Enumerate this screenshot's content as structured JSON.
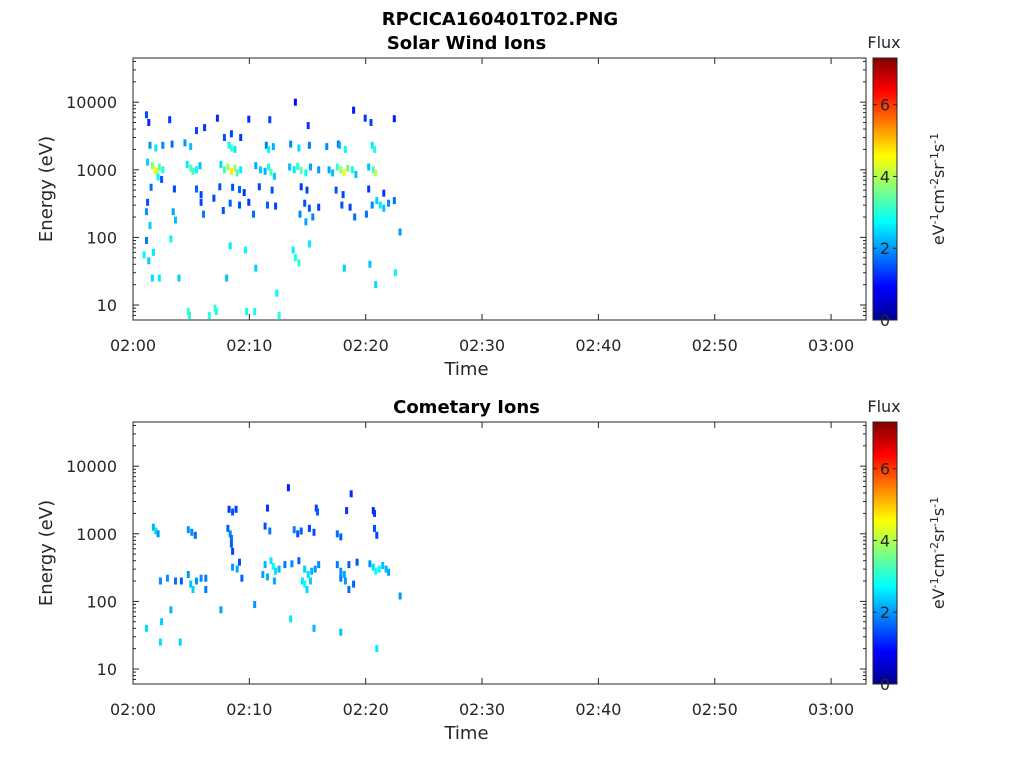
{
  "figure_title": "RPCICA160401T02.PNG",
  "colors": {
    "axis": "#262626",
    "colormap": [
      "#00008f",
      "#0000ff",
      "#0080ff",
      "#00ffff",
      "#80ff80",
      "#ffff00",
      "#ff8000",
      "#ff0000",
      "#800000"
    ]
  },
  "chart_data": [
    {
      "type": "heatmap",
      "title": "Solar Wind Ions",
      "xlabel": "Time",
      "ylabel": "Energy (eV)",
      "yscale": "log",
      "xlim": [
        "02:00",
        "03:03"
      ],
      "ylim": [
        6,
        45000
      ],
      "x_ticks": [
        "02:00",
        "02:10",
        "02:20",
        "02:30",
        "02:40",
        "02:50",
        "03:00"
      ],
      "y_ticks": [
        10,
        100,
        1000,
        10000
      ],
      "y_tick_labels": [
        "10",
        "100",
        "1000",
        "10000"
      ],
      "colorbar": {
        "title": "Flux",
        "label_base": "eV-1cm-2sr-1s-1",
        "range": [
          0,
          7.3
        ],
        "ticks": [
          0,
          2,
          4,
          6
        ],
        "tick_labels": [
          "0",
          "2",
          "4",
          "6"
        ]
      },
      "points": [
        [
          1.2,
          6500,
          1.5
        ],
        [
          1.4,
          5000,
          1.2
        ],
        [
          3.2,
          5500,
          1.3
        ],
        [
          4.5,
          2500,
          2.0
        ],
        [
          5.5,
          3800,
          1.4
        ],
        [
          6.2,
          4200,
          1.3
        ],
        [
          7.3,
          5800,
          1.2
        ],
        [
          7.9,
          3000,
          1.5
        ],
        [
          8.5,
          3400,
          1.4
        ],
        [
          9.3,
          3000,
          1.3
        ],
        [
          10.0,
          5600,
          1.2
        ],
        [
          11.8,
          5500,
          1.4
        ],
        [
          14.0,
          10000,
          1.0
        ],
        [
          15.1,
          4500,
          1.3
        ],
        [
          17.7,
          2400,
          1.6
        ],
        [
          19.0,
          7600,
          1.1
        ],
        [
          20.0,
          5800,
          1.3
        ],
        [
          20.5,
          5000,
          1.4
        ],
        [
          22.5,
          5700,
          1.1
        ],
        [
          1.5,
          2300,
          2.0
        ],
        [
          2.0,
          2100,
          2.6
        ],
        [
          2.6,
          2300,
          1.9
        ],
        [
          3.4,
          2400,
          1.7
        ],
        [
          5.0,
          2200,
          2.3
        ],
        [
          8.3,
          2300,
          2.8
        ],
        [
          8.5,
          2100,
          3.2
        ],
        [
          8.8,
          2000,
          2.6
        ],
        [
          11.5,
          2300,
          1.8
        ],
        [
          11.7,
          2000,
          2.7
        ],
        [
          12.1,
          2200,
          2.2
        ],
        [
          13.6,
          2400,
          1.9
        ],
        [
          14.3,
          2100,
          2.5
        ],
        [
          15.2,
          2300,
          1.8
        ],
        [
          16.7,
          2200,
          1.9
        ],
        [
          17.8,
          2300,
          2.2
        ],
        [
          18.3,
          2000,
          2.8
        ],
        [
          20.6,
          2300,
          2.6
        ],
        [
          20.8,
          2000,
          3.0
        ],
        [
          1.3,
          1300,
          2.4
        ],
        [
          1.7,
          1150,
          3.6
        ],
        [
          1.9,
          1000,
          4.5
        ],
        [
          2.1,
          950,
          4.2
        ],
        [
          2.3,
          1100,
          3.4
        ],
        [
          2.6,
          1000,
          2.9
        ],
        [
          2.2,
          780,
          2.7
        ],
        [
          4.7,
          1200,
          2.6
        ],
        [
          5.0,
          1050,
          3.3
        ],
        [
          5.2,
          950,
          3.2
        ],
        [
          5.5,
          1000,
          2.7
        ],
        [
          5.8,
          1150,
          2.3
        ],
        [
          7.6,
          1200,
          2.5
        ],
        [
          7.9,
          1000,
          3.2
        ],
        [
          8.2,
          1100,
          3.9
        ],
        [
          8.5,
          950,
          4.7
        ],
        [
          8.8,
          1050,
          3.7
        ],
        [
          9.0,
          900,
          3.3
        ],
        [
          9.3,
          1000,
          2.6
        ],
        [
          10.6,
          1150,
          2.1
        ],
        [
          11.0,
          1000,
          2.4
        ],
        [
          11.4,
          950,
          2.2
        ],
        [
          11.7,
          1100,
          2.9
        ],
        [
          11.9,
          920,
          3.3
        ],
        [
          12.2,
          800,
          2.4
        ],
        [
          13.5,
          1100,
          2.3
        ],
        [
          13.9,
          1000,
          2.6
        ],
        [
          14.2,
          1120,
          3.0
        ],
        [
          14.5,
          980,
          3.4
        ],
        [
          14.9,
          900,
          2.8
        ],
        [
          15.3,
          1100,
          2.1
        ],
        [
          16.0,
          1000,
          2.0
        ],
        [
          16.9,
          1000,
          2.1
        ],
        [
          17.2,
          900,
          2.3
        ],
        [
          17.6,
          1100,
          3.1
        ],
        [
          17.9,
          1000,
          3.8
        ],
        [
          18.2,
          920,
          4.4
        ],
        [
          18.5,
          1050,
          3.6
        ],
        [
          18.9,
          1000,
          2.9
        ],
        [
          19.2,
          850,
          2.3
        ],
        [
          20.3,
          1100,
          2.3
        ],
        [
          20.7,
          1000,
          3.2
        ],
        [
          20.9,
          900,
          4.1
        ],
        [
          1.6,
          550,
          1.7
        ],
        [
          2.5,
          720,
          1.5
        ],
        [
          3.6,
          520,
          1.4
        ],
        [
          5.5,
          520,
          1.6
        ],
        [
          5.9,
          430,
          1.4
        ],
        [
          7.5,
          560,
          1.5
        ],
        [
          8.6,
          550,
          1.5
        ],
        [
          9.2,
          510,
          1.6
        ],
        [
          9.6,
          460,
          1.3
        ],
        [
          10.9,
          560,
          1.4
        ],
        [
          12.0,
          500,
          1.5
        ],
        [
          14.5,
          560,
          1.3
        ],
        [
          15.0,
          500,
          1.4
        ],
        [
          17.5,
          500,
          1.5
        ],
        [
          18.1,
          430,
          1.4
        ],
        [
          20.3,
          520,
          1.3
        ],
        [
          21.6,
          450,
          1.3
        ],
        [
          1.3,
          330,
          1.5
        ],
        [
          5.9,
          330,
          1.4
        ],
        [
          7.0,
          380,
          1.4
        ],
        [
          8.4,
          320,
          1.6
        ],
        [
          9.2,
          300,
          1.5
        ],
        [
          10.0,
          330,
          1.3
        ],
        [
          11.6,
          300,
          1.6
        ],
        [
          12.3,
          290,
          1.4
        ],
        [
          14.8,
          320,
          1.5
        ],
        [
          15.2,
          270,
          1.6
        ],
        [
          16.0,
          280,
          1.4
        ],
        [
          18.0,
          300,
          1.5
        ],
        [
          18.7,
          280,
          1.4
        ],
        [
          20.6,
          300,
          1.9
        ],
        [
          21.0,
          350,
          2.4
        ],
        [
          21.3,
          300,
          2.6
        ],
        [
          21.6,
          270,
          2.3
        ],
        [
          22.0,
          320,
          1.9
        ],
        [
          22.5,
          350,
          1.7
        ],
        [
          1.2,
          240,
          2.0
        ],
        [
          1.5,
          150,
          2.4
        ],
        [
          3.5,
          240,
          2.1
        ],
        [
          3.7,
          180,
          2.3
        ],
        [
          6.1,
          220,
          1.8
        ],
        [
          7.8,
          250,
          1.5
        ],
        [
          10.4,
          220,
          1.7
        ],
        [
          14.4,
          220,
          1.9
        ],
        [
          14.9,
          170,
          2.1
        ],
        [
          15.5,
          200,
          1.9
        ],
        [
          19.1,
          200,
          1.7
        ],
        [
          20.1,
          220,
          1.7
        ],
        [
          23.0,
          120,
          2.0
        ],
        [
          1.2,
          90,
          1.8
        ],
        [
          1.8,
          60,
          2.6
        ],
        [
          3.3,
          95,
          2.7
        ],
        [
          8.4,
          75,
          2.6
        ],
        [
          9.7,
          65,
          2.7
        ],
        [
          13.8,
          65,
          2.6
        ],
        [
          14.0,
          50,
          2.9
        ],
        [
          14.3,
          42,
          3.0
        ],
        [
          15.2,
          80,
          2.6
        ],
        [
          1.0,
          55,
          2.7
        ],
        [
          1.4,
          45,
          2.4
        ],
        [
          1.7,
          25,
          2.5
        ],
        [
          2.3,
          25,
          2.6
        ],
        [
          4.0,
          25,
          2.4
        ],
        [
          8.1,
          25,
          2.3
        ],
        [
          10.6,
          35,
          2.4
        ],
        [
          18.2,
          35,
          2.4
        ],
        [
          20.4,
          40,
          2.3
        ],
        [
          20.9,
          20,
          2.5
        ],
        [
          22.6,
          30,
          2.7
        ],
        [
          4.8,
          8,
          3.1
        ],
        [
          4.9,
          7,
          3.0
        ],
        [
          6.6,
          7,
          3.0
        ],
        [
          7.1,
          9,
          3.1
        ],
        [
          7.2,
          8,
          3.0
        ],
        [
          9.8,
          8,
          2.9
        ],
        [
          10.5,
          8,
          2.9
        ],
        [
          12.4,
          15,
          2.7
        ],
        [
          12.6,
          7,
          3.0
        ]
      ]
    },
    {
      "type": "heatmap",
      "title": "Cometary Ions",
      "xlabel": "Time",
      "ylabel": "Energy (eV)",
      "yscale": "log",
      "xlim": [
        "02:00",
        "03:03"
      ],
      "ylim": [
        6,
        45000
      ],
      "x_ticks": [
        "02:00",
        "02:10",
        "02:20",
        "02:30",
        "02:40",
        "02:50",
        "03:00"
      ],
      "y_ticks": [
        10,
        100,
        1000,
        10000
      ],
      "y_tick_labels": [
        "10",
        "100",
        "1000",
        "10000"
      ],
      "colorbar": {
        "title": "Flux",
        "label_base": "eV-1cm-2sr-1s-1",
        "range": [
          0,
          7.3
        ],
        "ticks": [
          0,
          2,
          4,
          6
        ],
        "tick_labels": [
          "0",
          "2",
          "4",
          "6"
        ]
      },
      "points": [
        [
          13.4,
          4800,
          1.1
        ],
        [
          18.8,
          3900,
          1.2
        ],
        [
          8.3,
          2300,
          1.3
        ],
        [
          8.6,
          2100,
          1.5
        ],
        [
          8.9,
          2300,
          1.4
        ],
        [
          11.6,
          2400,
          1.3
        ],
        [
          15.8,
          2400,
          1.4
        ],
        [
          15.9,
          2100,
          1.6
        ],
        [
          18.4,
          2200,
          1.3
        ],
        [
          20.7,
          2200,
          1.2
        ],
        [
          20.8,
          2000,
          1.3
        ],
        [
          1.8,
          1250,
          2.2
        ],
        [
          2.0,
          1100,
          2.5
        ],
        [
          2.2,
          1000,
          2.0
        ],
        [
          4.8,
          1150,
          2.0
        ],
        [
          5.1,
          1050,
          1.9
        ],
        [
          5.4,
          950,
          1.7
        ],
        [
          8.2,
          1200,
          1.6
        ],
        [
          8.4,
          1000,
          1.9
        ],
        [
          8.5,
          850,
          1.7
        ],
        [
          11.4,
          1300,
          1.5
        ],
        [
          11.8,
          1100,
          1.8
        ],
        [
          13.9,
          1150,
          1.8
        ],
        [
          14.2,
          1000,
          1.5
        ],
        [
          14.5,
          1100,
          1.6
        ],
        [
          15.2,
          1200,
          1.4
        ],
        [
          15.6,
          1050,
          1.5
        ],
        [
          17.6,
          1000,
          1.7
        ],
        [
          17.9,
          900,
          1.6
        ],
        [
          20.8,
          1200,
          1.5
        ],
        [
          21.0,
          950,
          1.4
        ],
        [
          8.5,
          700,
          1.6
        ],
        [
          8.6,
          550,
          1.4
        ],
        [
          9.2,
          380,
          1.5
        ],
        [
          8.6,
          320,
          2.0
        ],
        [
          9.0,
          300,
          2.1
        ],
        [
          11.4,
          350,
          2.2
        ],
        [
          11.9,
          400,
          2.6
        ],
        [
          12.1,
          330,
          2.8
        ],
        [
          12.3,
          280,
          2.5
        ],
        [
          12.6,
          300,
          2.2
        ],
        [
          13.1,
          350,
          1.8
        ],
        [
          13.7,
          360,
          1.9
        ],
        [
          14.3,
          400,
          1.6
        ],
        [
          14.8,
          300,
          2.4
        ],
        [
          15.1,
          250,
          2.5
        ],
        [
          15.4,
          280,
          2.2
        ],
        [
          15.7,
          300,
          2.0
        ],
        [
          16.0,
          350,
          1.9
        ],
        [
          17.6,
          350,
          1.8
        ],
        [
          17.9,
          280,
          2.0
        ],
        [
          18.2,
          250,
          2.1
        ],
        [
          18.6,
          350,
          1.6
        ],
        [
          19.3,
          380,
          1.5
        ],
        [
          20.4,
          360,
          2.0
        ],
        [
          20.7,
          320,
          2.5
        ],
        [
          20.9,
          280,
          2.8
        ],
        [
          21.2,
          300,
          2.7
        ],
        [
          21.5,
          340,
          2.3
        ],
        [
          21.8,
          300,
          2.2
        ],
        [
          22.0,
          270,
          2.1
        ],
        [
          2.4,
          200,
          1.9
        ],
        [
          3.0,
          220,
          2.0
        ],
        [
          4.2,
          200,
          1.6
        ],
        [
          4.8,
          250,
          2.0
        ],
        [
          5.0,
          180,
          2.3
        ],
        [
          5.2,
          150,
          2.4
        ],
        [
          5.5,
          200,
          2.0
        ],
        [
          5.9,
          220,
          1.9
        ],
        [
          6.3,
          220,
          1.8
        ],
        [
          9.4,
          220,
          1.6
        ],
        [
          11.2,
          250,
          2.1
        ],
        [
          11.6,
          230,
          2.2
        ],
        [
          12.2,
          200,
          2.1
        ],
        [
          14.6,
          200,
          2.6
        ],
        [
          14.8,
          180,
          2.8
        ],
        [
          15.0,
          150,
          2.5
        ],
        [
          15.3,
          200,
          2.4
        ],
        [
          17.9,
          220,
          1.8
        ],
        [
          18.3,
          200,
          2.0
        ],
        [
          18.6,
          150,
          1.7
        ],
        [
          19.0,
          180,
          1.6
        ],
        [
          6.3,
          150,
          1.8
        ],
        [
          3.7,
          200,
          1.7
        ],
        [
          23.0,
          120,
          2.0
        ],
        [
          7.6,
          75,
          2.1
        ],
        [
          10.5,
          90,
          2.0
        ],
        [
          3.3,
          75,
          2.2
        ],
        [
          2.5,
          50,
          2.4
        ],
        [
          1.2,
          40,
          2.5
        ],
        [
          2.4,
          25,
          2.5
        ],
        [
          4.1,
          25,
          2.4
        ],
        [
          13.6,
          55,
          2.6
        ],
        [
          15.6,
          40,
          2.2
        ],
        [
          17.9,
          35,
          2.3
        ],
        [
          21.0,
          20,
          2.6
        ]
      ]
    }
  ]
}
